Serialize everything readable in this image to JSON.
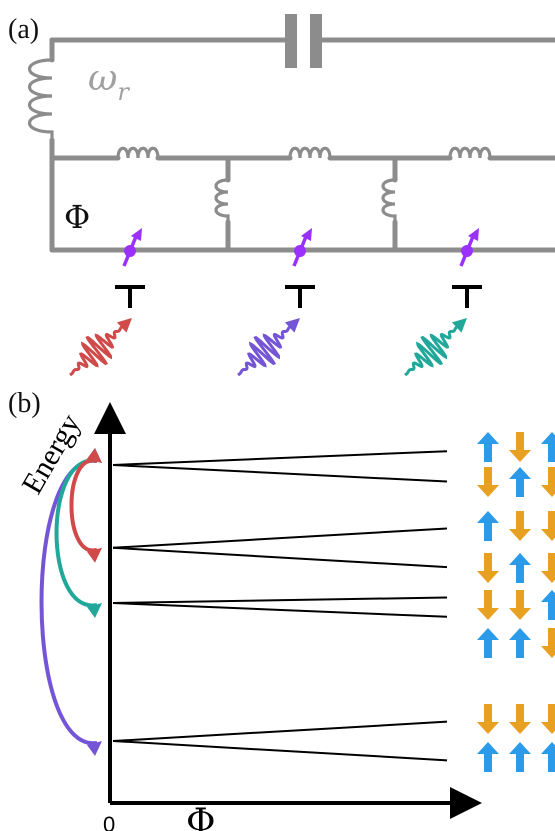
{
  "panel_a": {
    "label": "(a)",
    "resonator_label": "ω",
    "resonator_subscript": "r",
    "flux_label": "Φ"
  },
  "panel_b": {
    "label": "(b)",
    "y_axis_label": "Energy",
    "x_axis_label": "Φ",
    "x_tick_label": "0"
  },
  "colors": {
    "circuit_gray": "#8c8c8c",
    "qubit_purple": "#9b30ff",
    "drive_red": "#d04a4a",
    "drive_violet": "#7455d6",
    "drive_teal": "#22a89a",
    "spin_up_blue": "#2b9ae8",
    "spin_down_orange": "#e8a020"
  },
  "chart_data": {
    "type": "line",
    "levels": [
      {
        "start": 1.0,
        "upper_end": 1.05,
        "lower_end": 0.94,
        "states": [
          [
            "up",
            "down",
            "up"
          ],
          [
            "down",
            "up",
            "down"
          ]
        ]
      },
      {
        "start": 0.7,
        "upper_end": 0.77,
        "lower_end": 0.63,
        "states": [
          [
            "up",
            "down",
            "down"
          ],
          [
            "down",
            "up",
            "down"
          ]
        ]
      },
      {
        "start": 0.5,
        "upper_end": 0.52,
        "lower_end": 0.45,
        "states": [
          [
            "down",
            "down",
            "up"
          ],
          [
            "up",
            "up",
            "down"
          ]
        ]
      },
      {
        "start": 0.0,
        "upper_end": 0.07,
        "lower_end": -0.07,
        "states": [
          [
            "down",
            "down",
            "down"
          ],
          [
            "up",
            "up",
            "up"
          ]
        ]
      }
    ],
    "transitions": [
      {
        "from": 0,
        "to": 3,
        "color": "violet"
      },
      {
        "from": 0,
        "to": 2,
        "color": "teal"
      },
      {
        "from": 0,
        "to": 1,
        "color": "red"
      }
    ]
  }
}
